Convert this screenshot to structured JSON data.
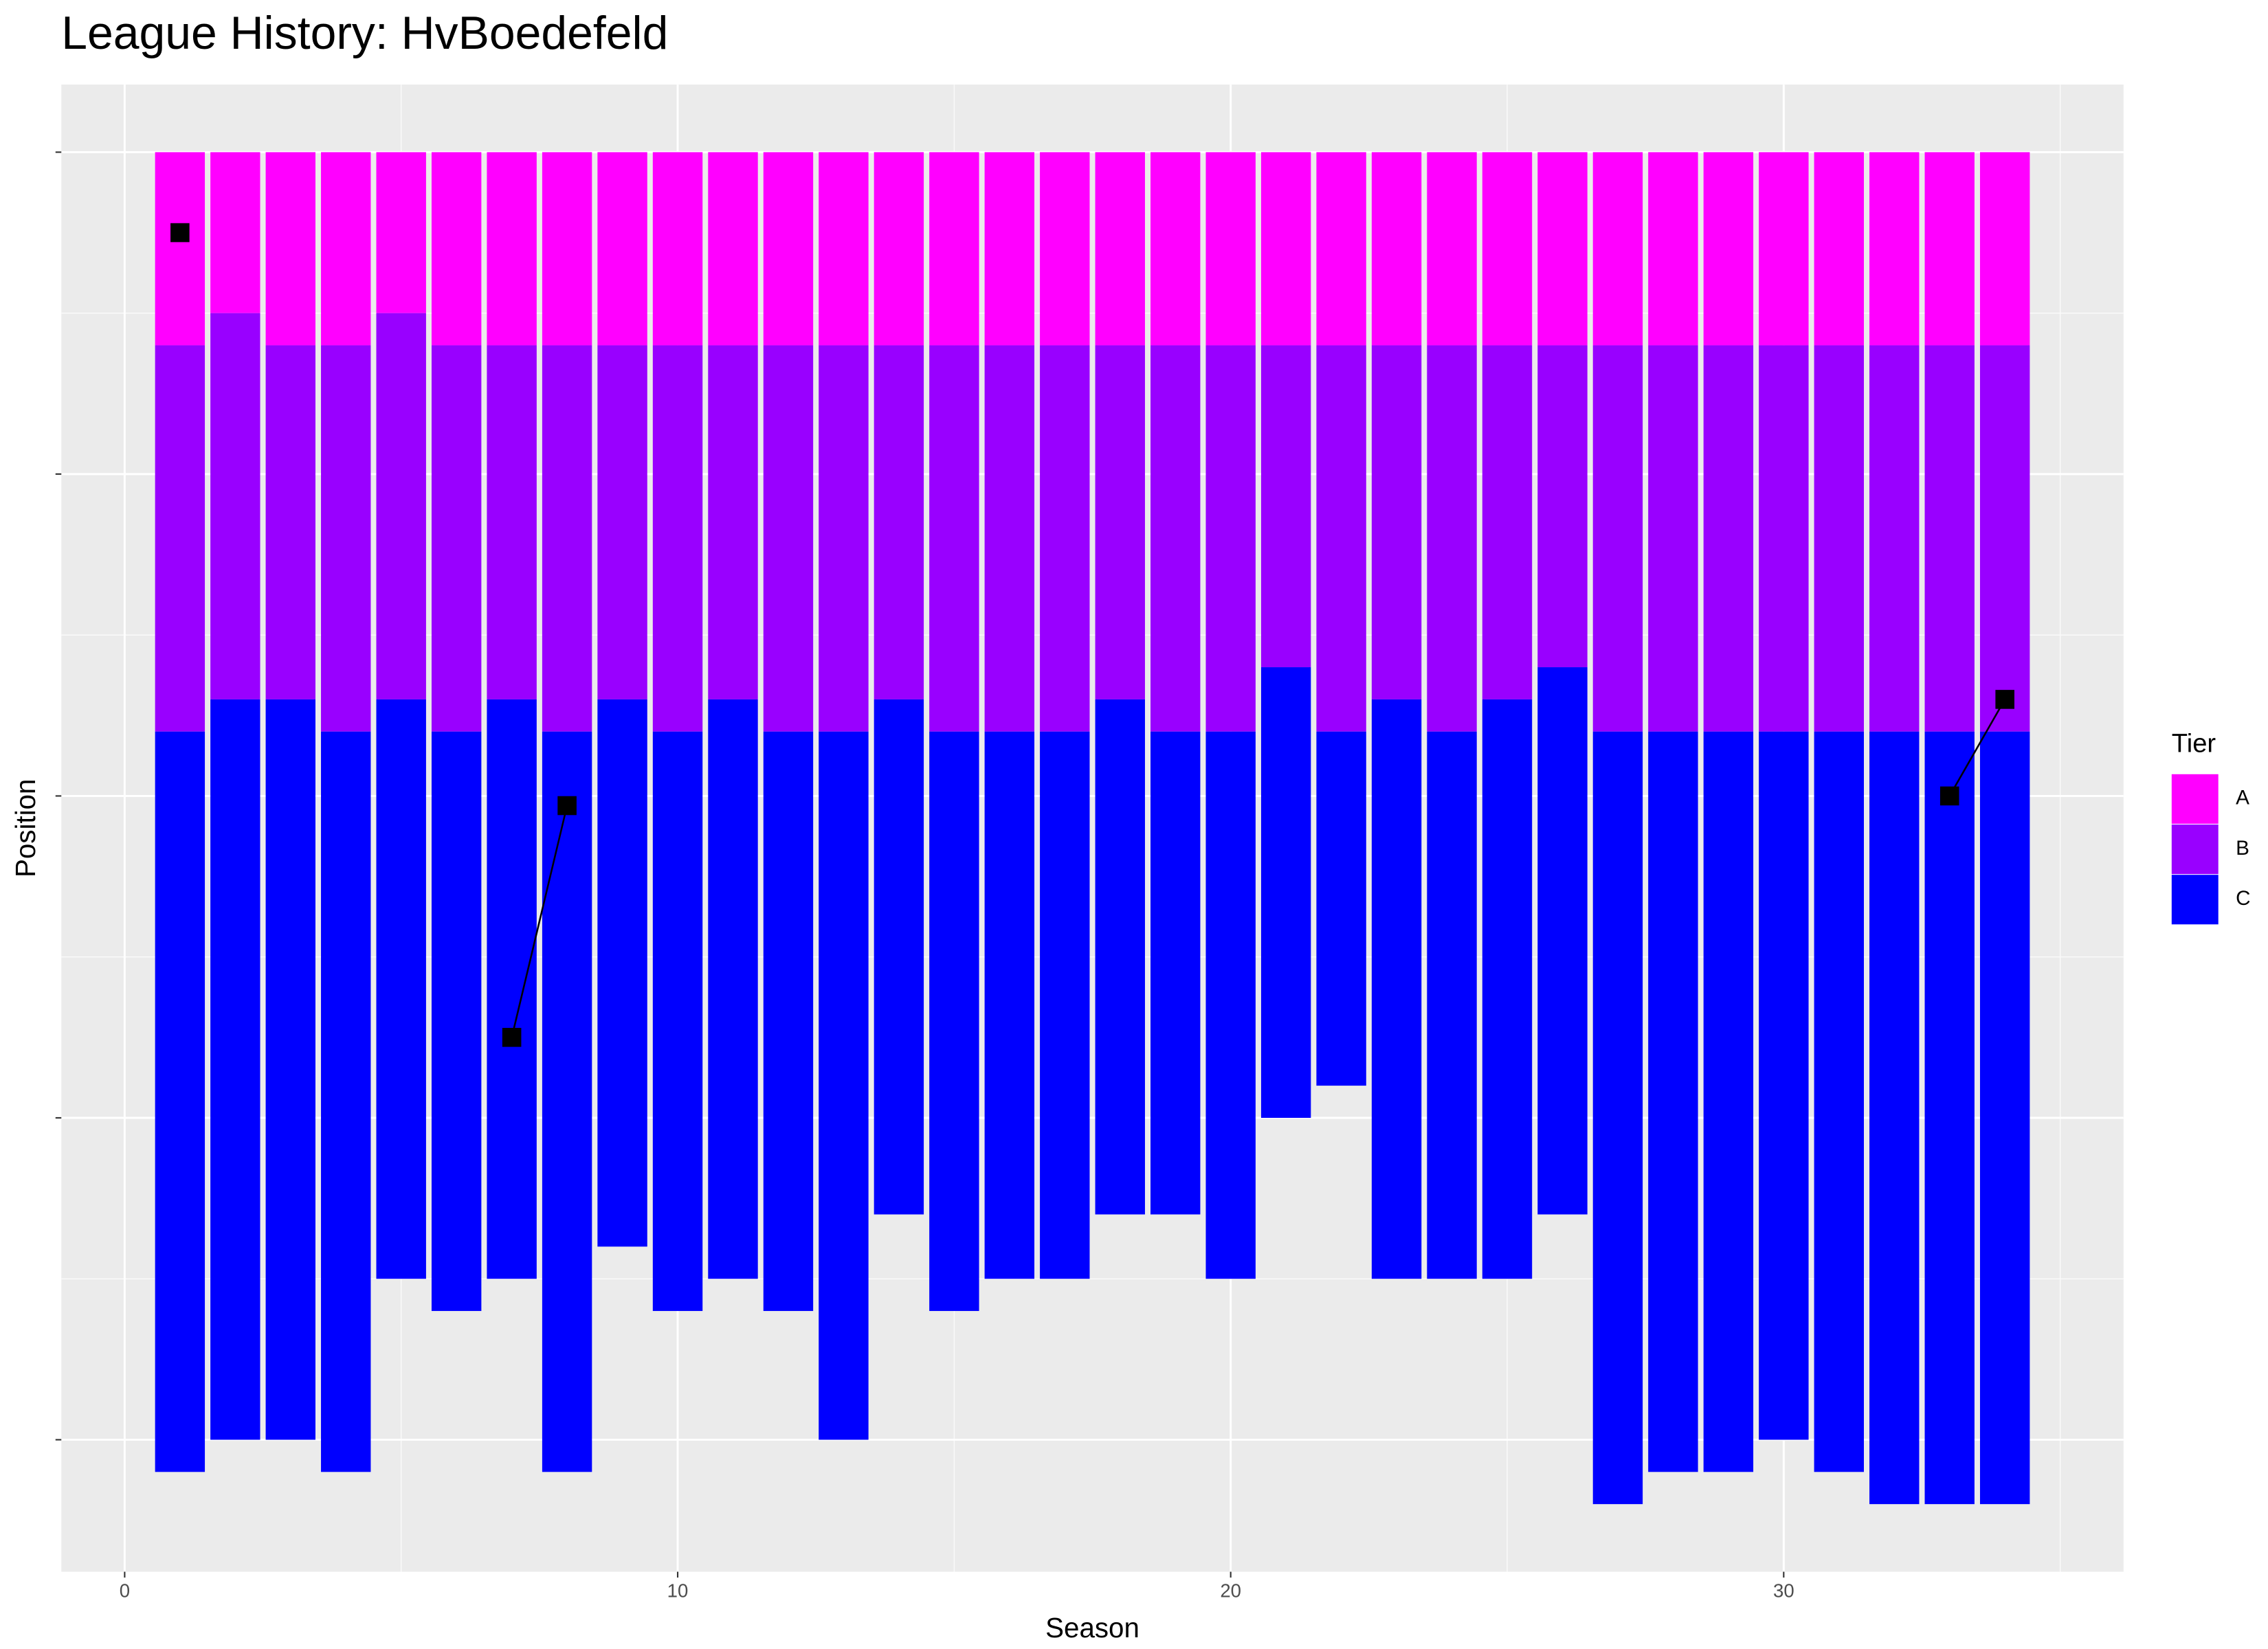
{
  "chart_data": {
    "type": "stacked_bar",
    "title": "League History: HvBoedefeld",
    "x_label": "Season",
    "y_label": "Position",
    "x": [
      1,
      2,
      3,
      4,
      5,
      6,
      7,
      8,
      9,
      10,
      11,
      12,
      13,
      14,
      15,
      16,
      17,
      18,
      19,
      20,
      21,
      22,
      23,
      24,
      25,
      26,
      27,
      28,
      29,
      30,
      31,
      32,
      33,
      34
    ],
    "series": [
      {
        "name": "A",
        "color": "#ff00ff",
        "values": [
          6,
          5,
          6,
          6,
          5,
          6,
          6,
          6,
          6,
          6,
          6,
          6,
          6,
          6,
          6,
          6,
          6,
          6,
          6,
          6,
          6,
          6,
          6,
          6,
          6,
          6,
          6,
          6,
          6,
          6,
          6,
          6,
          6,
          6
        ]
      },
      {
        "name": "B",
        "color": "#9900ff",
        "values": [
          12,
          12,
          11,
          12,
          12,
          12,
          11,
          12,
          11,
          12,
          11,
          12,
          12,
          11,
          12,
          12,
          12,
          11,
          12,
          12,
          10,
          12,
          11,
          12,
          11,
          10,
          12,
          12,
          12,
          12,
          12,
          12,
          12,
          12
        ]
      },
      {
        "name": "C",
        "color": "#0000ff",
        "values": [
          23,
          23,
          23,
          23,
          18,
          18,
          18,
          23,
          17,
          18,
          18,
          18,
          22,
          16,
          18,
          17,
          17,
          16,
          15,
          17,
          14,
          11,
          18,
          17,
          18,
          17,
          24,
          23,
          23,
          22,
          23,
          24,
          24,
          24
        ]
      }
    ],
    "points": {
      "color": "#000000",
      "values": [
        2.5,
        null,
        null,
        null,
        null,
        null,
        27.5,
        20.3,
        null,
        null,
        null,
        null,
        null,
        null,
        null,
        null,
        null,
        null,
        null,
        null,
        null,
        null,
        null,
        null,
        null,
        null,
        null,
        null,
        null,
        null,
        null,
        null,
        20,
        17
      ]
    },
    "xlim": [
      -1.145,
      36.145
    ],
    "xticks": [
      0,
      10,
      20,
      30
    ],
    "ylim": [
      44.1,
      -2.1
    ],
    "yticks": [
      0,
      10,
      20,
      30,
      40
    ],
    "grid": true,
    "legend_title": "Tier",
    "legend_position": "right"
  }
}
